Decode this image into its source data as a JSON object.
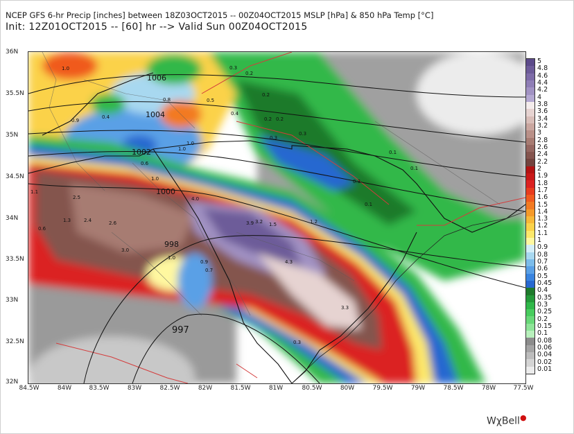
{
  "header": {
    "line1": "NCEP GFS 6-hr Precip [inches] between 18Z03OCT2015 -- 00Z04OCT2015 MSLP [hPa] & 850 hPa Temp [°C]",
    "line2": "Init: 12Z01OCT2015 -- [60] hr --> Valid Sun 00Z04OCT2015"
  },
  "map": {
    "lat_labels": [
      "36N",
      "35.5N",
      "35N",
      "34.5N",
      "34N",
      "33.5N",
      "33N",
      "32.5N",
      "32N"
    ],
    "lon_labels": [
      "84.5W",
      "84W",
      "83.5W",
      "83W",
      "82.5W",
      "82W",
      "81.5W",
      "81W",
      "80.5W",
      "80W",
      "79.5W",
      "79W",
      "78.5W",
      "78W",
      "77.5W"
    ],
    "isobar_labels": [
      "1006",
      "1004",
      "1002",
      "1000",
      "998",
      "997"
    ],
    "value_labels": [
      "1.0",
      "0.3",
      "0.2",
      "0.8",
      "0.5",
      "0.2",
      "0.9",
      "0.4",
      "0.4",
      "0.2",
      "0.2",
      "0.3",
      "1.0",
      "1.0",
      "0.3",
      "0.1",
      "0.1",
      "0.6",
      "1.0",
      "0.3",
      "1.1",
      "2.5",
      "4.0",
      "0.1",
      "1.3",
      "2.4",
      "2.6",
      "3.9",
      "3.2",
      "1.5",
      "1.2",
      "0.6",
      "3.0",
      "1.0",
      "0.9",
      "4.3",
      "0.7",
      "3.3",
      "0.3"
    ]
  },
  "colorbar": {
    "labels": [
      "5",
      "4.8",
      "4.6",
      "4.4",
      "4.2",
      "4",
      "3.8",
      "3.6",
      "3.4",
      "3.2",
      "3",
      "2.8",
      "2.6",
      "2.4",
      "2.2",
      "2",
      "1.9",
      "1.8",
      "1.7",
      "1.6",
      "1.5",
      "1.4",
      "1.3",
      "1.2",
      "1.1",
      "1",
      "0.9",
      "0.8",
      "0.7",
      "0.6",
      "0.5",
      "0.45",
      "0.4",
      "0.35",
      "0.3",
      "0.25",
      "0.2",
      "0.15",
      "0.1",
      "0.08",
      "0.06",
      "0.04",
      "0.02",
      "0.01"
    ],
    "colors": [
      "#5c4a8a",
      "#6d5b99",
      "#7e6ca8",
      "#8f7eb6",
      "#a192c3",
      "#b4a8d1",
      "#f4ecec",
      "#e6d3d1",
      "#d8bdb8",
      "#c9a69f",
      "#b99088",
      "#a77b72",
      "#956660",
      "#84544e",
      "#73433e",
      "#b31212",
      "#c81818",
      "#db2222",
      "#e83c1e",
      "#f05a1e",
      "#f27a22",
      "#f59a2a",
      "#f8b838",
      "#fbd24a",
      "#fde86a",
      "#fff8a0",
      "#d4eef8",
      "#a8d8f0",
      "#7cbcea",
      "#5aa0e6",
      "#3a84e0",
      "#2868d0",
      "#1e7a2c",
      "#249a3a",
      "#30b84a",
      "#48cc5e",
      "#68d878",
      "#8ee498",
      "#b8f0bc",
      "#8c8c8c",
      "#a4a4a4",
      "#bcbcbc",
      "#d4d4d4",
      "#ececec"
    ]
  },
  "logo": {
    "text": "WχBell",
    "dot": "●"
  }
}
